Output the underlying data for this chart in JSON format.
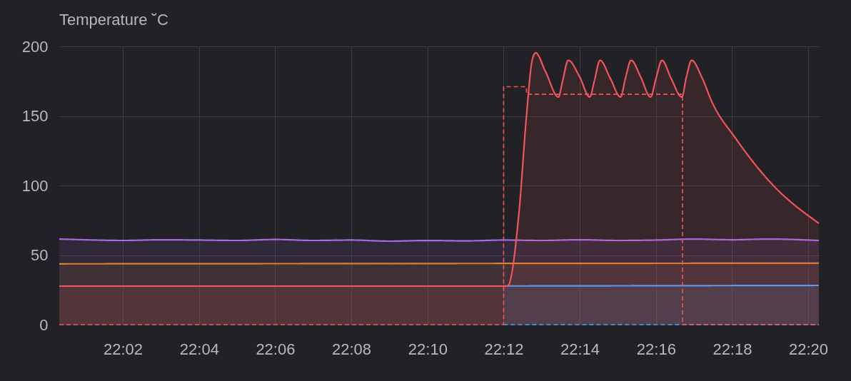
{
  "chart_data": {
    "type": "area",
    "ylabel": "Temperature ˘C",
    "xlim": [
      22.0055,
      22.3383
    ],
    "ylim": [
      0,
      200
    ],
    "yticks": [
      0,
      50,
      100,
      150,
      200
    ],
    "xticks": [
      {
        "value": 22.0333,
        "label": "22:02"
      },
      {
        "value": 22.0667,
        "label": "22:04"
      },
      {
        "value": 22.1,
        "label": "22:06"
      },
      {
        "value": 22.1333,
        "label": "22:08"
      },
      {
        "value": 22.1667,
        "label": "22:10"
      },
      {
        "value": 22.2,
        "label": "22:12"
      },
      {
        "value": 22.2333,
        "label": "22:14"
      },
      {
        "value": 22.2667,
        "label": "22:16"
      },
      {
        "value": 22.3,
        "label": "22:18"
      },
      {
        "value": 22.3333,
        "label": "22:20"
      }
    ],
    "grid": true,
    "series": [
      {
        "color": "#a66be0",
        "x": [
          22.0055,
          22.0167,
          22.0333,
          22.05,
          22.0667,
          22.0833,
          22.1,
          22.1167,
          22.1333,
          22.15,
          22.1667,
          22.1833,
          22.2,
          22.2167,
          22.2333,
          22.25,
          22.2667,
          22.2833,
          22.3,
          22.3167,
          22.3333,
          22.338
        ],
        "values": [
          61.5,
          61,
          60.5,
          61,
          60.8,
          60.5,
          61.2,
          60.5,
          60.8,
          60,
          60.5,
          60.2,
          60.8,
          60.5,
          61,
          60.5,
          60.8,
          61.5,
          61,
          61.5,
          60.8,
          60.5
        ]
      },
      {
        "color": "#d9822b",
        "x": [
          22.0055,
          22.338
        ],
        "values": [
          43.7,
          44.2
        ]
      },
      {
        "color": "#4a9eff",
        "x": [
          22.2,
          22.338
        ],
        "values": [
          27.8,
          28.2
        ]
      },
      {
        "color": "#f2555a",
        "x": [
          22.0055,
          22.2017,
          22.2067,
          22.21,
          22.2125,
          22.214,
          22.2183,
          22.224,
          22.2258,
          22.2283,
          22.2333,
          22.2377,
          22.2397,
          22.2422,
          22.2467,
          22.2512,
          22.2533,
          22.2558,
          22.26,
          22.2643,
          22.2667,
          22.2693,
          22.2733,
          22.278,
          22.28,
          22.2823,
          22.2867,
          22.2912,
          22.3015,
          22.3172,
          22.338
        ],
        "values": [
          27.7,
          27.7,
          80,
          150,
          190,
          195.4,
          182,
          163.6,
          175,
          190,
          178,
          163.6,
          175,
          190,
          177,
          163.6,
          177,
          190,
          178,
          163.6,
          177,
          190,
          177,
          163.6,
          178,
          190,
          178,
          160,
          134,
          101.5,
          72.8
        ]
      },
      {
        "type": "line",
        "line_style": "dashed",
        "color": "#4a9eff",
        "x": [
          22.2,
          22.338
        ],
        "values": [
          0,
          0
        ]
      },
      {
        "type": "line",
        "line_style": "dashed",
        "color": "#f2555a",
        "x": [
          22.0055,
          22.2,
          22.2,
          22.21,
          22.21,
          22.2783,
          22.2783,
          22.338
        ],
        "values": [
          0,
          0,
          171,
          171,
          165.6,
          165.6,
          0,
          0
        ]
      }
    ]
  }
}
